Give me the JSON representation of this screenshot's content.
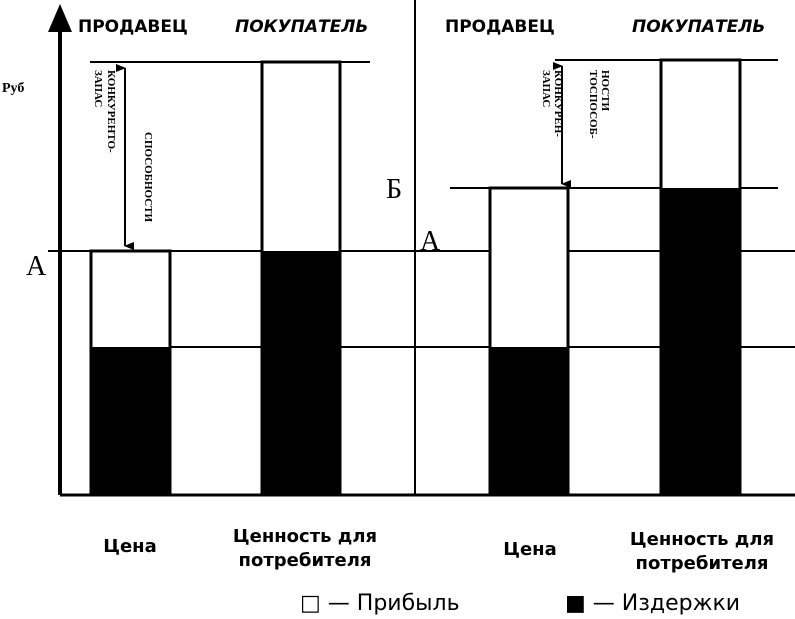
{
  "left_panel": {
    "seller": "ПРОДАВЕЦ",
    "buyer": "ПОКУПАТЕЛЬ",
    "axis_unit": "Руб",
    "level": "А",
    "margin_label": [
      "ЗАПАС",
      "КОНКУРЕНТО-",
      "СПОСОБНОСТИ"
    ]
  },
  "right_panel": {
    "seller": "ПРОДАВЕЦ",
    "buyer": "ПОКУПАТЕЛЬ",
    "level_a": "А",
    "level_b": "Б",
    "margin_label_1": [
      "ЗАПАС",
      "КОНКУРЕН-"
    ],
    "margin_label_2": [
      "ТОСПОСОБ-",
      "НОСТИ"
    ]
  },
  "bars": {
    "price": "Цена",
    "value": [
      "Ценность для",
      "потребителя"
    ]
  },
  "legend": {
    "profit": "□ — Прибыль",
    "costs": "■ — Издержки"
  }
}
